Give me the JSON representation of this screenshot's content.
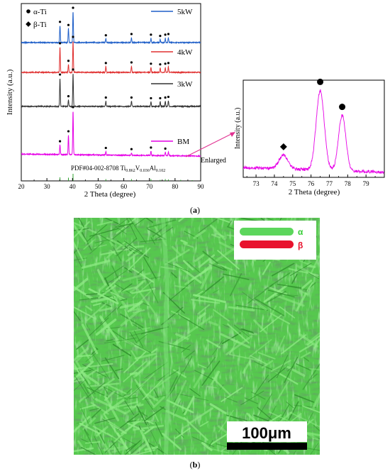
{
  "chart_data": [
    {
      "type": "line",
      "xlabel": "2 Theta (degree)",
      "ylabel": "Intensity (a.u.)",
      "xlim": [
        20,
        90
      ],
      "xticks": [
        "20",
        "30",
        "40",
        "50",
        "60",
        "70",
        "80",
        "90"
      ],
      "legend_markers": [
        {
          "symbol": "●",
          "label": "α-Ti"
        },
        {
          "symbol": "◆",
          "label": "β-Ti"
        }
      ],
      "series": [
        {
          "name": "5kW",
          "color": "#1f5fc8",
          "peaks_x": [
            35.1,
            38.4,
            40.2,
            53.0,
            63.0,
            70.6,
            74.2,
            76.2,
            77.4
          ],
          "peaks_rel": [
            0.55,
            0.45,
            1.0,
            0.12,
            0.16,
            0.14,
            0.1,
            0.14,
            0.16
          ]
        },
        {
          "name": "4kW",
          "color": "#e03030",
          "peaks_x": [
            35.1,
            38.4,
            40.2,
            53.0,
            63.0,
            70.6,
            74.2,
            76.2,
            77.4
          ],
          "peaks_rel": [
            0.8,
            0.25,
            1.0,
            0.18,
            0.2,
            0.16,
            0.14,
            0.16,
            0.18
          ]
        },
        {
          "name": "3kW",
          "color": "#333333",
          "peaks_x": [
            35.1,
            38.4,
            40.2,
            53.0,
            63.0,
            70.6,
            74.2,
            76.2,
            77.4
          ],
          "peaks_rel": [
            0.85,
            0.2,
            1.0,
            0.16,
            0.16,
            0.14,
            0.14,
            0.16,
            0.18
          ]
        },
        {
          "name": "BM",
          "color": "#e600e6",
          "peaks_x": [
            35.1,
            38.4,
            40.2,
            53.0,
            63.0,
            70.6,
            76.2,
            77.4
          ],
          "peaks_rel": [
            0.22,
            0.45,
            1.0,
            0.08,
            0.06,
            0.1,
            0.08,
            0.08
          ]
        }
      ],
      "alpha_markers": {
        "5kW": [
          35.1,
          38.4,
          40.2,
          53.0,
          63.0,
          70.6,
          74.2,
          76.2,
          77.4
        ],
        "4kW": [
          35.1,
          38.4,
          40.2,
          53.0,
          63.0,
          70.6,
          74.2,
          76.2,
          77.4
        ],
        "3kW": [
          35.1,
          38.4,
          40.2,
          53.0,
          63.0,
          70.6,
          74.2,
          76.2,
          77.4
        ],
        "BM": [
          35.1,
          38.4,
          40.2,
          53.0,
          63.0,
          70.6,
          76.2
        ]
      },
      "reference": {
        "pdf_prefix": "PDF#04-002-8708 Ti",
        "ti_sub": "0.862",
        "v_label": "V",
        "v_sub": "0.036",
        "al_label": "Al",
        "al_sub": "0.102",
        "color": "#2ca02c",
        "lines_x": [
          35.1,
          38.4,
          40.2,
          53.0,
          63.0,
          70.6,
          74.2,
          76.2,
          77.4,
          82.2,
          86.7
        ],
        "lines_rel": [
          0.5,
          0.45,
          1.0,
          0.25,
          0.25,
          0.25,
          0.15,
          0.25,
          0.2,
          0.15,
          0.1
        ]
      },
      "annotation": "Enlarged"
    },
    {
      "type": "line",
      "xlabel": "2 Theta (degree)",
      "ylabel": "Intensity (a.u.)",
      "xlim": [
        72.3,
        80
      ],
      "xticks": [
        "73",
        "74",
        "75",
        "76",
        "77",
        "78",
        "79"
      ],
      "series": [
        {
          "name": "BM",
          "color": "#e600e6",
          "peaks": [
            {
              "x": 74.5,
              "height": 0.14,
              "width": 0.25,
              "marker": "◆"
            },
            {
              "x": 76.5,
              "height": 0.82,
              "width": 0.22,
              "marker": "●"
            },
            {
              "x": 77.7,
              "height": 0.57,
              "width": 0.2,
              "marker": "●"
            }
          ]
        }
      ]
    }
  ],
  "captions": {
    "a": "(a)",
    "b": "(b)"
  },
  "micrograph": {
    "legend": [
      {
        "label": "α",
        "color": "#5cd65c",
        "text_color": "#33cc33"
      },
      {
        "label": "β",
        "color": "#e8132e",
        "text_color": "#e8132e"
      }
    ],
    "scale_bar": "100μm",
    "base_color": "#56c84e"
  }
}
